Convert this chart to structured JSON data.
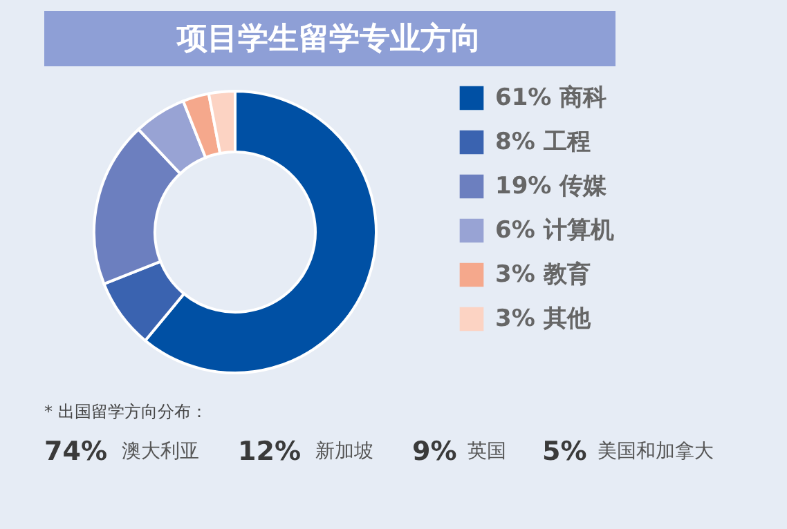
{
  "chart_data": {
    "type": "donut",
    "title": "项目学生留学专业方向",
    "categories": [
      "商科",
      "工程",
      "传媒",
      "计算机",
      "教育",
      "其他"
    ],
    "values": [
      61,
      8,
      19,
      6,
      3,
      3
    ],
    "value_labels": [
      "61%",
      "8%",
      "19%",
      "6%",
      "3%",
      "3%"
    ],
    "colors": [
      "#0050a4",
      "#3a63b0",
      "#6c7fbf",
      "#98a3d4",
      "#f5a88c",
      "#fcd3c3"
    ],
    "legend": "right",
    "annotations": [
      "* 出国留学方向分布：",
      "74% 澳大利亚",
      "12% 新加坡",
      "9% 英国",
      "5% 美国和加拿大"
    ]
  }
}
